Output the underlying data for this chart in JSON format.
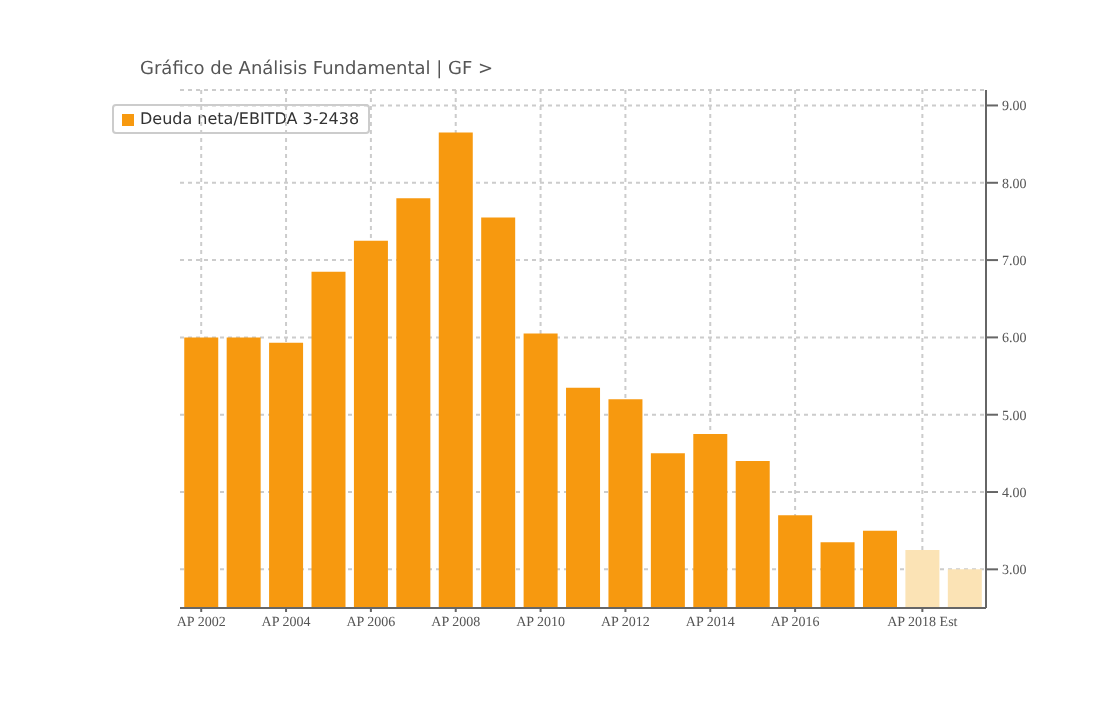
{
  "chart_data": {
    "type": "bar",
    "title": "Gráfico de Análisis Fundamental | GF >",
    "categories": [
      "AP 2002",
      null,
      "AP 2004",
      null,
      "AP 2006",
      null,
      "AP 2008",
      null,
      "AP 2010",
      null,
      "AP 2012",
      null,
      "AP 2014",
      null,
      "AP 2016",
      null,
      null,
      "AP 2018 Est",
      null
    ],
    "series": [
      {
        "name": "Deuda neta/EBITDA 3-2438",
        "color": "#f7990f",
        "colors": [
          "#f7990f",
          "#f7990f",
          "#f7990f",
          "#f7990f",
          "#f7990f",
          "#f7990f",
          "#f7990f",
          "#f7990f",
          "#f7990f",
          "#f7990f",
          "#f7990f",
          "#f7990f",
          "#f7990f",
          "#f7990f",
          "#f7990f",
          "#f7990f",
          "#f7990f",
          "#fbe3b5",
          "#fbe3b5"
        ],
        "values": [
          6.0,
          6.0,
          5.93,
          6.85,
          7.25,
          7.8,
          8.65,
          7.55,
          6.05,
          5.35,
          5.2,
          4.5,
          4.75,
          4.4,
          3.7,
          3.35,
          3.5,
          3.25,
          3.0
        ]
      }
    ],
    "ylim": [
      2.5,
      9.2
    ],
    "yticks": [
      {
        "value": 3,
        "label": "3.00"
      },
      {
        "value": 4,
        "label": "4.00"
      },
      {
        "value": 5,
        "label": "5.00"
      },
      {
        "value": 6,
        "label": "6.00"
      },
      {
        "value": 7,
        "label": "7.00"
      },
      {
        "value": 8,
        "label": "8.00"
      },
      {
        "value": 9,
        "label": "9.00"
      }
    ],
    "grid": true,
    "legend": "top left"
  }
}
